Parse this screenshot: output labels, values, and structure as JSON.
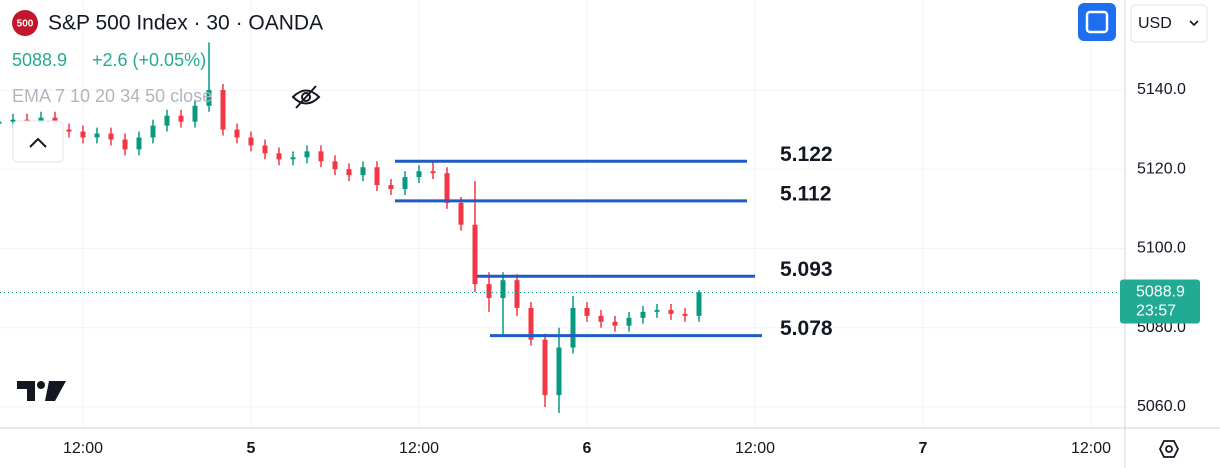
{
  "header": {
    "badge": "500",
    "title": "S&P 500 Index · 30 · OANDA",
    "price": "5088.9",
    "change": "+2.6 (+0.05%)",
    "indicator": "EMA 7 10 20 34 50 close",
    "currency": "USD",
    "countdown": "23:57"
  },
  "chart_data": {
    "type": "candlestick",
    "up_color": "#089981",
    "down_color": "#f23645",
    "categories": [
      null,
      null,
      null,
      null,
      null,
      null,
      "12:00",
      null,
      null,
      null,
      null,
      null,
      null,
      null,
      null,
      null,
      null,
      null,
      "5",
      null,
      null,
      null,
      null,
      null,
      null,
      null,
      null,
      null,
      null,
      null,
      "12:00",
      null,
      null,
      null,
      null,
      null,
      null,
      null,
      null,
      null,
      null,
      null,
      "6",
      null,
      null,
      null,
      null,
      null,
      null,
      null,
      null,
      null,
      null,
      null,
      "12:00",
      null,
      null,
      null,
      null,
      null,
      null,
      null,
      null,
      null,
      null,
      null,
      "7",
      null,
      null,
      null,
      null,
      null,
      null,
      null,
      null,
      null,
      null,
      null,
      "12:00"
    ],
    "open": [
      5131.5,
      5132,
      5132.5,
      5131,
      5133,
      5130,
      5129.5,
      5128,
      5129,
      5127.5,
      5125,
      5128,
      5131,
      5133.5,
      5132,
      5136,
      5140,
      5130,
      5128,
      5126,
      5124,
      5122.5,
      5123,
      5124.5,
      5122,
      5120,
      5118.5,
      5120.5,
      5116,
      5115,
      5118,
      5119.5,
      5119,
      5111.5,
      5106,
      5091,
      5087.5,
      5092,
      5085,
      5077,
      5063,
      5075,
      5085,
      5083,
      5081.5,
      5080.5,
      5082.5,
      5084,
      5084.5,
      5083.5,
      5083,
      null,
      null,
      null,
      null,
      null,
      null,
      null,
      null,
      null,
      null,
      null,
      null,
      null,
      null,
      null,
      null,
      null,
      null,
      null,
      null,
      null,
      null,
      null,
      null,
      null,
      null,
      null,
      null
    ],
    "high": [
      5133.5,
      5134,
      5134,
      5134.5,
      5134.5,
      5131.5,
      5131,
      5130.5,
      5130.5,
      5129,
      5129.5,
      5132.5,
      5135,
      5135,
      5137.5,
      5152,
      5141.5,
      5131.5,
      5129.5,
      5127.5,
      5125.5,
      5124.5,
      5126,
      5126,
      5123.5,
      5121.5,
      5122,
      5122,
      5117.5,
      5119.5,
      5121,
      5122,
      5120.5,
      5113,
      5117,
      5094,
      5094,
      5093.5,
      5086.5,
      5078.5,
      5080,
      5088,
      5086.5,
      5084.5,
      5083,
      5084,
      5085.5,
      5086,
      5086,
      5085,
      5089.5,
      null,
      null,
      null,
      null,
      null,
      null,
      null,
      null,
      null,
      null,
      null,
      null,
      null,
      null,
      null,
      null,
      null,
      null,
      null,
      null,
      null,
      null,
      null,
      null,
      null,
      null,
      null,
      null
    ],
    "low": [
      5130,
      5130.5,
      5129.5,
      5129.5,
      5128.5,
      5128,
      5126.5,
      5126.5,
      5126,
      5123.5,
      5123.5,
      5126.5,
      5129.5,
      5130.5,
      5130.5,
      5134.5,
      5128.5,
      5126.5,
      5124.5,
      5122.5,
      5121,
      5121,
      5121.5,
      5120.5,
      5118.5,
      5117,
      5117,
      5114.5,
      5113.5,
      5113.5,
      5116.5,
      5117.5,
      5110,
      5104.5,
      5089,
      5084,
      5078,
      5083,
      5075.5,
      5060,
      5058.5,
      5073.5,
      5081.5,
      5080,
      5079,
      5079,
      5081,
      5082.5,
      5082,
      5081.5,
      5081.5,
      null,
      null,
      null,
      null,
      null,
      null,
      null,
      null,
      null,
      null,
      null,
      null,
      null,
      null,
      null,
      null,
      null,
      null,
      null,
      null,
      null,
      null,
      null,
      null,
      null,
      null,
      null,
      null
    ],
    "close": [
      5132,
      5132.5,
      5131,
      5133,
      5130,
      5129.5,
      5128,
      5129,
      5127.5,
      5125,
      5128,
      5131,
      5133.5,
      5132,
      5136,
      5140,
      5130,
      5128,
      5126,
      5124,
      5122.5,
      5123,
      5124.5,
      5122,
      5120,
      5118.5,
      5120.5,
      5116,
      5115,
      5118,
      5119.5,
      5119,
      5111.5,
      5106,
      5091,
      5087.5,
      5092,
      5085,
      5077,
      5063,
      5075,
      5085,
      5083,
      5081.5,
      5080.5,
      5082.5,
      5084,
      5084.5,
      5083.5,
      5083,
      5088.9,
      null,
      null,
      null,
      null,
      null,
      null,
      null,
      null,
      null,
      null,
      null,
      null,
      null,
      null,
      null,
      null,
      null,
      null,
      null,
      null,
      null,
      null,
      null,
      null,
      null,
      null,
      null,
      null
    ],
    "ylim": [
      5054.7,
      5162.7
    ],
    "yticks": [
      {
        "value": 5060,
        "label": "5060.0"
      },
      {
        "value": 5080,
        "label": "5080.0"
      },
      {
        "value": 5100,
        "label": "5100.0"
      },
      {
        "value": 5120,
        "label": "5120.0"
      },
      {
        "value": 5140,
        "label": "5140.0"
      }
    ],
    "grid": true,
    "levels": [
      {
        "value": 5122,
        "label": "5.122",
        "color": "#1e5bc6"
      },
      {
        "value": 5112,
        "label": "5.112",
        "color": "#1e5bc6"
      },
      {
        "value": 5093,
        "label": "5.093",
        "color": "#1e5bc6"
      },
      {
        "value": 5078,
        "label": "5.078",
        "color": "#1e5bc6"
      }
    ]
  }
}
